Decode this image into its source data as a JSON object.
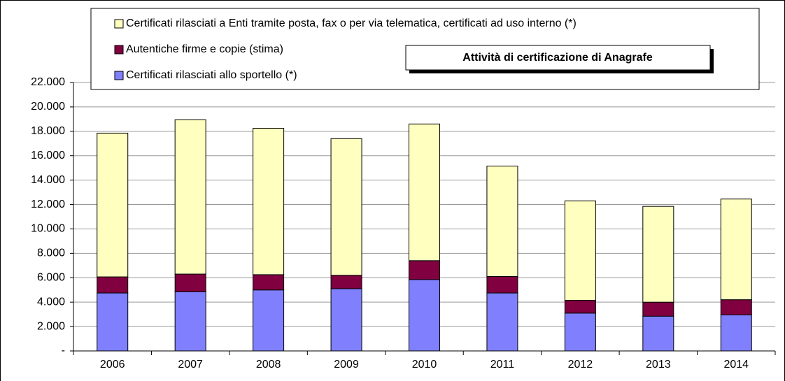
{
  "chart_data": {
    "type": "stacked_bar",
    "title": "Attività di certificazione di Anagrafe",
    "categories": [
      "2006",
      "2007",
      "2008",
      "2009",
      "2010",
      "2011",
      "2012",
      "2013",
      "2014"
    ],
    "series": [
      {
        "name": "Certificati rilasciati allo sportello (*)",
        "color": "#8080ff",
        "values": [
          4750,
          4850,
          5000,
          5100,
          5850,
          4750,
          3100,
          2850,
          2950
        ]
      },
      {
        "name": "Autentiche firme e copie (stima)",
        "color": "#800040",
        "values": [
          1320,
          1450,
          1250,
          1100,
          1550,
          1350,
          1050,
          1150,
          1250
        ]
      },
      {
        "name": "Certificati rilasciati a Enti tramite posta, fax o per via telematica, certificati ad uso interno (*)",
        "color": "#ffffc0",
        "values": [
          11780,
          12650,
          12000,
          11200,
          11200,
          9050,
          8150,
          7850,
          8250
        ]
      }
    ],
    "ylim": [
      0,
      22000
    ],
    "yticks": [
      {
        "value": 0,
        "label": "-"
      },
      {
        "value": 2000,
        "label": "2.000"
      },
      {
        "value": 4000,
        "label": "4.000"
      },
      {
        "value": 6000,
        "label": "6.000"
      },
      {
        "value": 8000,
        "label": "8.000"
      },
      {
        "value": 10000,
        "label": "10.000"
      },
      {
        "value": 12000,
        "label": "12.000"
      },
      {
        "value": 14000,
        "label": "14.000"
      },
      {
        "value": 16000,
        "label": "16.000"
      },
      {
        "value": 18000,
        "label": "18.000"
      },
      {
        "value": 20000,
        "label": "20.000"
      },
      {
        "value": 22000,
        "label": "22.000"
      }
    ],
    "grid": true
  }
}
